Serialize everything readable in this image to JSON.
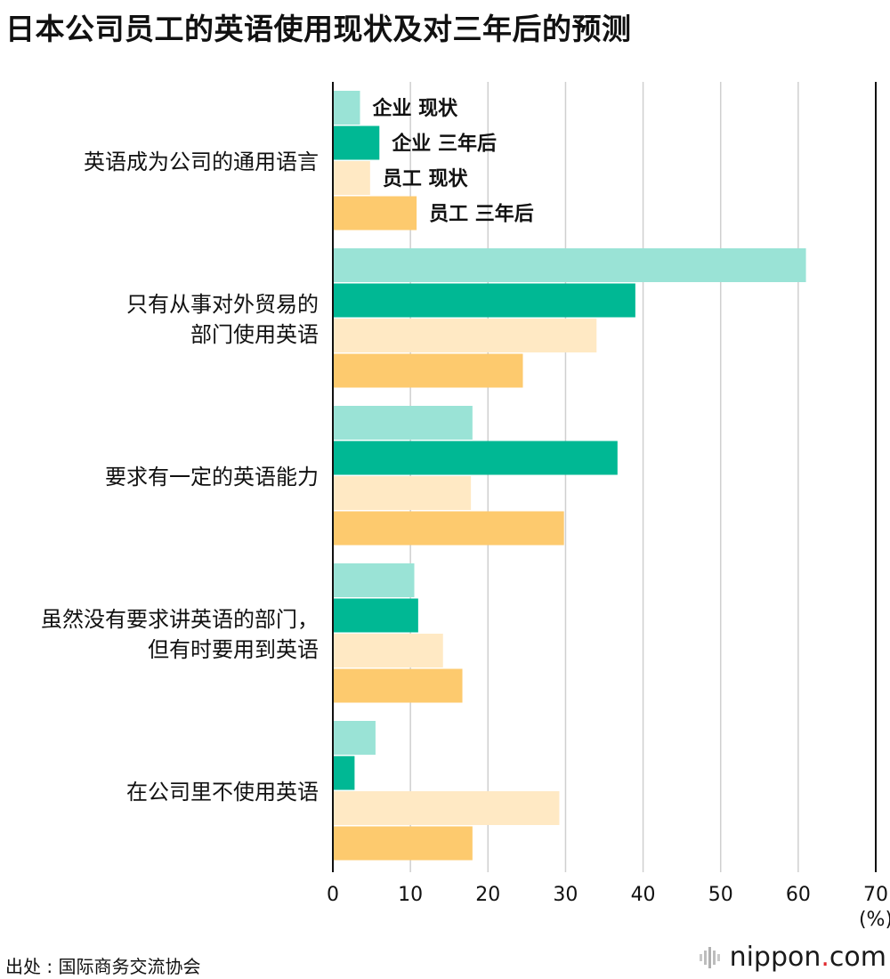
{
  "title": "日本公司员工的英语使用现状及对三年后的预测",
  "source": "出处 : 国际商务交流协会",
  "logo": {
    "name": "nippon",
    "dot": ".",
    "suffix": "com"
  },
  "chart_data": {
    "type": "bar",
    "orientation": "horizontal",
    "categories": [
      [
        "英语成为公司的通用语言"
      ],
      [
        "只有从事对外贸易的",
        "部门使用英语"
      ],
      [
        "要求有一定的英语能力"
      ],
      [
        "虽然没有要求讲英语的部门，",
        "但有时要用到英语"
      ],
      [
        "在公司里不使用英语"
      ]
    ],
    "series": [
      {
        "name": "企业 现状",
        "color": "#9ae3d6",
        "values": [
          3.5,
          61,
          18,
          10.5,
          5.5
        ]
      },
      {
        "name": "企业 三年后",
        "color": "#00b894",
        "values": [
          6,
          39,
          36.7,
          11,
          2.8
        ]
      },
      {
        "name": "员工 现状",
        "color": "#ffe9c4",
        "values": [
          4.8,
          34,
          17.8,
          14.2,
          29.2
        ]
      },
      {
        "name": "员工 三年后",
        "color": "#fdca6e",
        "values": [
          10.8,
          24.5,
          29.8,
          16.7,
          18
        ]
      }
    ],
    "xlim": [
      0,
      70
    ],
    "ticks": [
      0,
      10,
      20,
      30,
      40,
      50,
      60,
      70
    ],
    "unit_label": "(%)",
    "legend": "inline-first-group",
    "grid": true
  }
}
